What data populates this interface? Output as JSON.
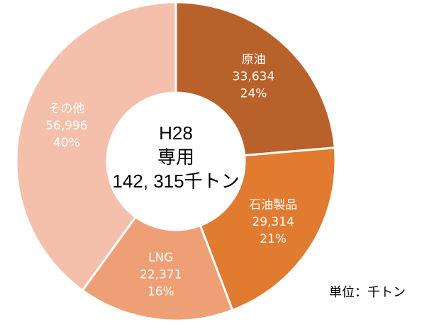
{
  "chart_data": {
    "type": "donut",
    "categories": [
      "原油",
      "石油製品",
      "LNG",
      "その他"
    ],
    "values": [
      33634,
      29314,
      22371,
      56996
    ],
    "value_labels": [
      "33,634",
      "29,314",
      "22,371",
      "56,996"
    ],
    "percent_labels": [
      "24%",
      "21%",
      "16%",
      "40%"
    ],
    "colors": [
      "#b8612a",
      "#e07b30",
      "#ee9f75",
      "#f4c0ab"
    ],
    "center_text": [
      "H28",
      "専用",
      "142, 315千トン"
    ],
    "unit_note": "単位：千トン"
  }
}
